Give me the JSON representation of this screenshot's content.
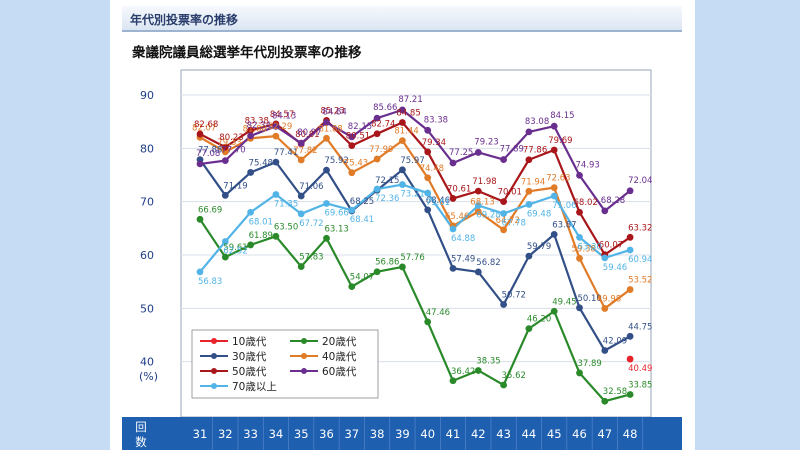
{
  "header": {
    "section_title": "年代別投票率の推移"
  },
  "chart_data": {
    "type": "line",
    "title": "衆議院議員総選挙年代別投票率の推移",
    "ylabel": "(%)",
    "xlabel": "回数",
    "xlabel_chars": [
      "回",
      "数"
    ],
    "ylim": [
      30,
      90
    ],
    "yticks": [
      40,
      50,
      60,
      70,
      80,
      90
    ],
    "categories": [
      "31",
      "32",
      "33",
      "34",
      "35",
      "36",
      "37",
      "38",
      "39",
      "40",
      "41",
      "42",
      "43",
      "44",
      "45",
      "46",
      "47",
      "48"
    ],
    "series": [
      {
        "name": "10歳代",
        "color": "#e8232a",
        "values": [
          null,
          null,
          null,
          null,
          null,
          null,
          null,
          null,
          null,
          null,
          null,
          null,
          null,
          null,
          null,
          null,
          null,
          40.49
        ]
      },
      {
        "name": "20歳代",
        "color": "#2a8a2a",
        "values": [
          66.69,
          59.61,
          61.89,
          63.5,
          57.83,
          63.13,
          54.07,
          56.86,
          57.76,
          47.46,
          36.42,
          38.35,
          35.62,
          46.2,
          49.45,
          37.89,
          32.58,
          33.85
        ]
      },
      {
        "name": "30歳代",
        "color": "#324f87",
        "values": [
          77.88,
          71.19,
          75.48,
          77.41,
          71.06,
          75.92,
          68.25,
          72.15,
          75.97,
          68.46,
          57.49,
          56.82,
          50.72,
          59.79,
          63.87,
          50.1,
          42.09,
          44.75
        ]
      },
      {
        "name": "40歳代",
        "color": "#e07b28",
        "values": [
          82.07,
          79.33,
          81.88,
          82.29,
          77.82,
          81.88,
          75.43,
          77.99,
          81.44,
          74.48,
          65.46,
          68.13,
          64.72,
          71.94,
          72.63,
          59.38,
          49.98,
          53.52
        ]
      },
      {
        "name": "50歳代",
        "color": "#a8161a",
        "values": [
          82.68,
          80.23,
          83.38,
          84.57,
          80.81,
          85.23,
          80.51,
          82.74,
          84.85,
          79.34,
          70.61,
          71.98,
          70.01,
          77.86,
          79.69,
          68.02,
          60.07,
          63.32
        ]
      },
      {
        "name": "60歳代",
        "color": "#6a2e8f",
        "values": [
          77.08,
          77.7,
          82.34,
          84.13,
          80.97,
          84.84,
          82.15,
          85.66,
          87.21,
          83.38,
          77.25,
          79.23,
          77.89,
          83.08,
          84.15,
          74.93,
          68.28,
          72.04
        ]
      },
      {
        "name": "70歳以上",
        "color": "#52b4e6",
        "values": [
          56.83,
          62.52,
          68.01,
          71.35,
          67.72,
          69.66,
          68.41,
          72.36,
          73.21,
          71.61,
          64.88,
          69.28,
          67.78,
          69.48,
          71.06,
          63.3,
          59.46,
          60.94
        ]
      }
    ]
  }
}
